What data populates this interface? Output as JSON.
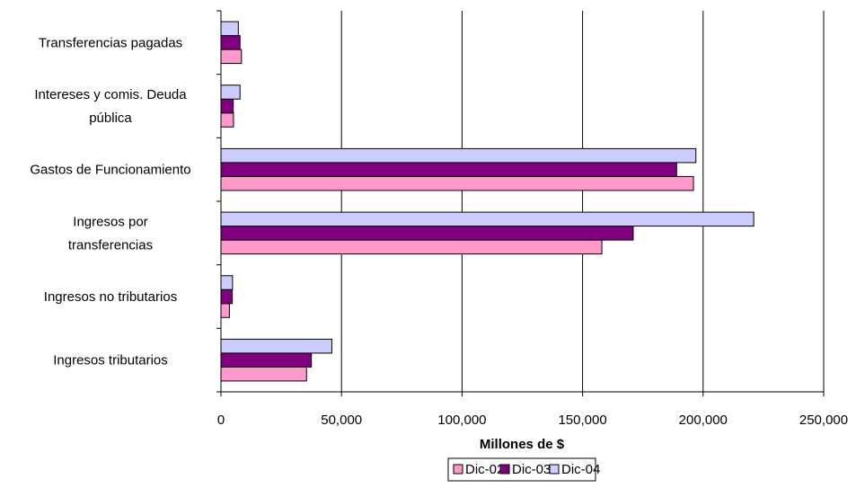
{
  "chart_data": {
    "type": "bar",
    "orientation": "horizontal",
    "title": "",
    "xlabel": "Millones de $",
    "ylabel": "",
    "categories": [
      "Transferencias pagadas",
      "Intereses y comis. Deuda pública",
      "Gastos de Funcionamiento",
      "Ingresos por transferencias",
      "Ingresos no tributarios",
      "Ingresos tributarios"
    ],
    "category_lines": [
      [
        "Transferencias pagadas"
      ],
      [
        "Intereses y comis. Deuda",
        "pública"
      ],
      [
        "Gastos de Funcionamiento"
      ],
      [
        "Ingresos por",
        "transferencias"
      ],
      [
        "Ingresos no tributarios"
      ],
      [
        "Ingresos tributarios"
      ]
    ],
    "series": [
      {
        "name": "Dic-02",
        "color": "#FF99CC",
        "values": [
          8500,
          5200,
          196000,
          158000,
          3500,
          35500
        ]
      },
      {
        "name": "Dic-03",
        "color": "#800080",
        "values": [
          7900,
          5100,
          189000,
          171000,
          4700,
          37500
        ]
      },
      {
        "name": "Dic-04",
        "color": "#CCCCFF",
        "values": [
          7200,
          7900,
          197000,
          221000,
          4800,
          46000
        ]
      }
    ],
    "xlim": [
      0,
      250000
    ],
    "xticks": [
      0,
      50000,
      100000,
      150000,
      200000,
      250000
    ],
    "xtick_labels": [
      "0",
      "50,000",
      "100,000",
      "150,000",
      "200,000",
      "250,000"
    ],
    "grid": "vertical",
    "legend_position": "bottom"
  }
}
